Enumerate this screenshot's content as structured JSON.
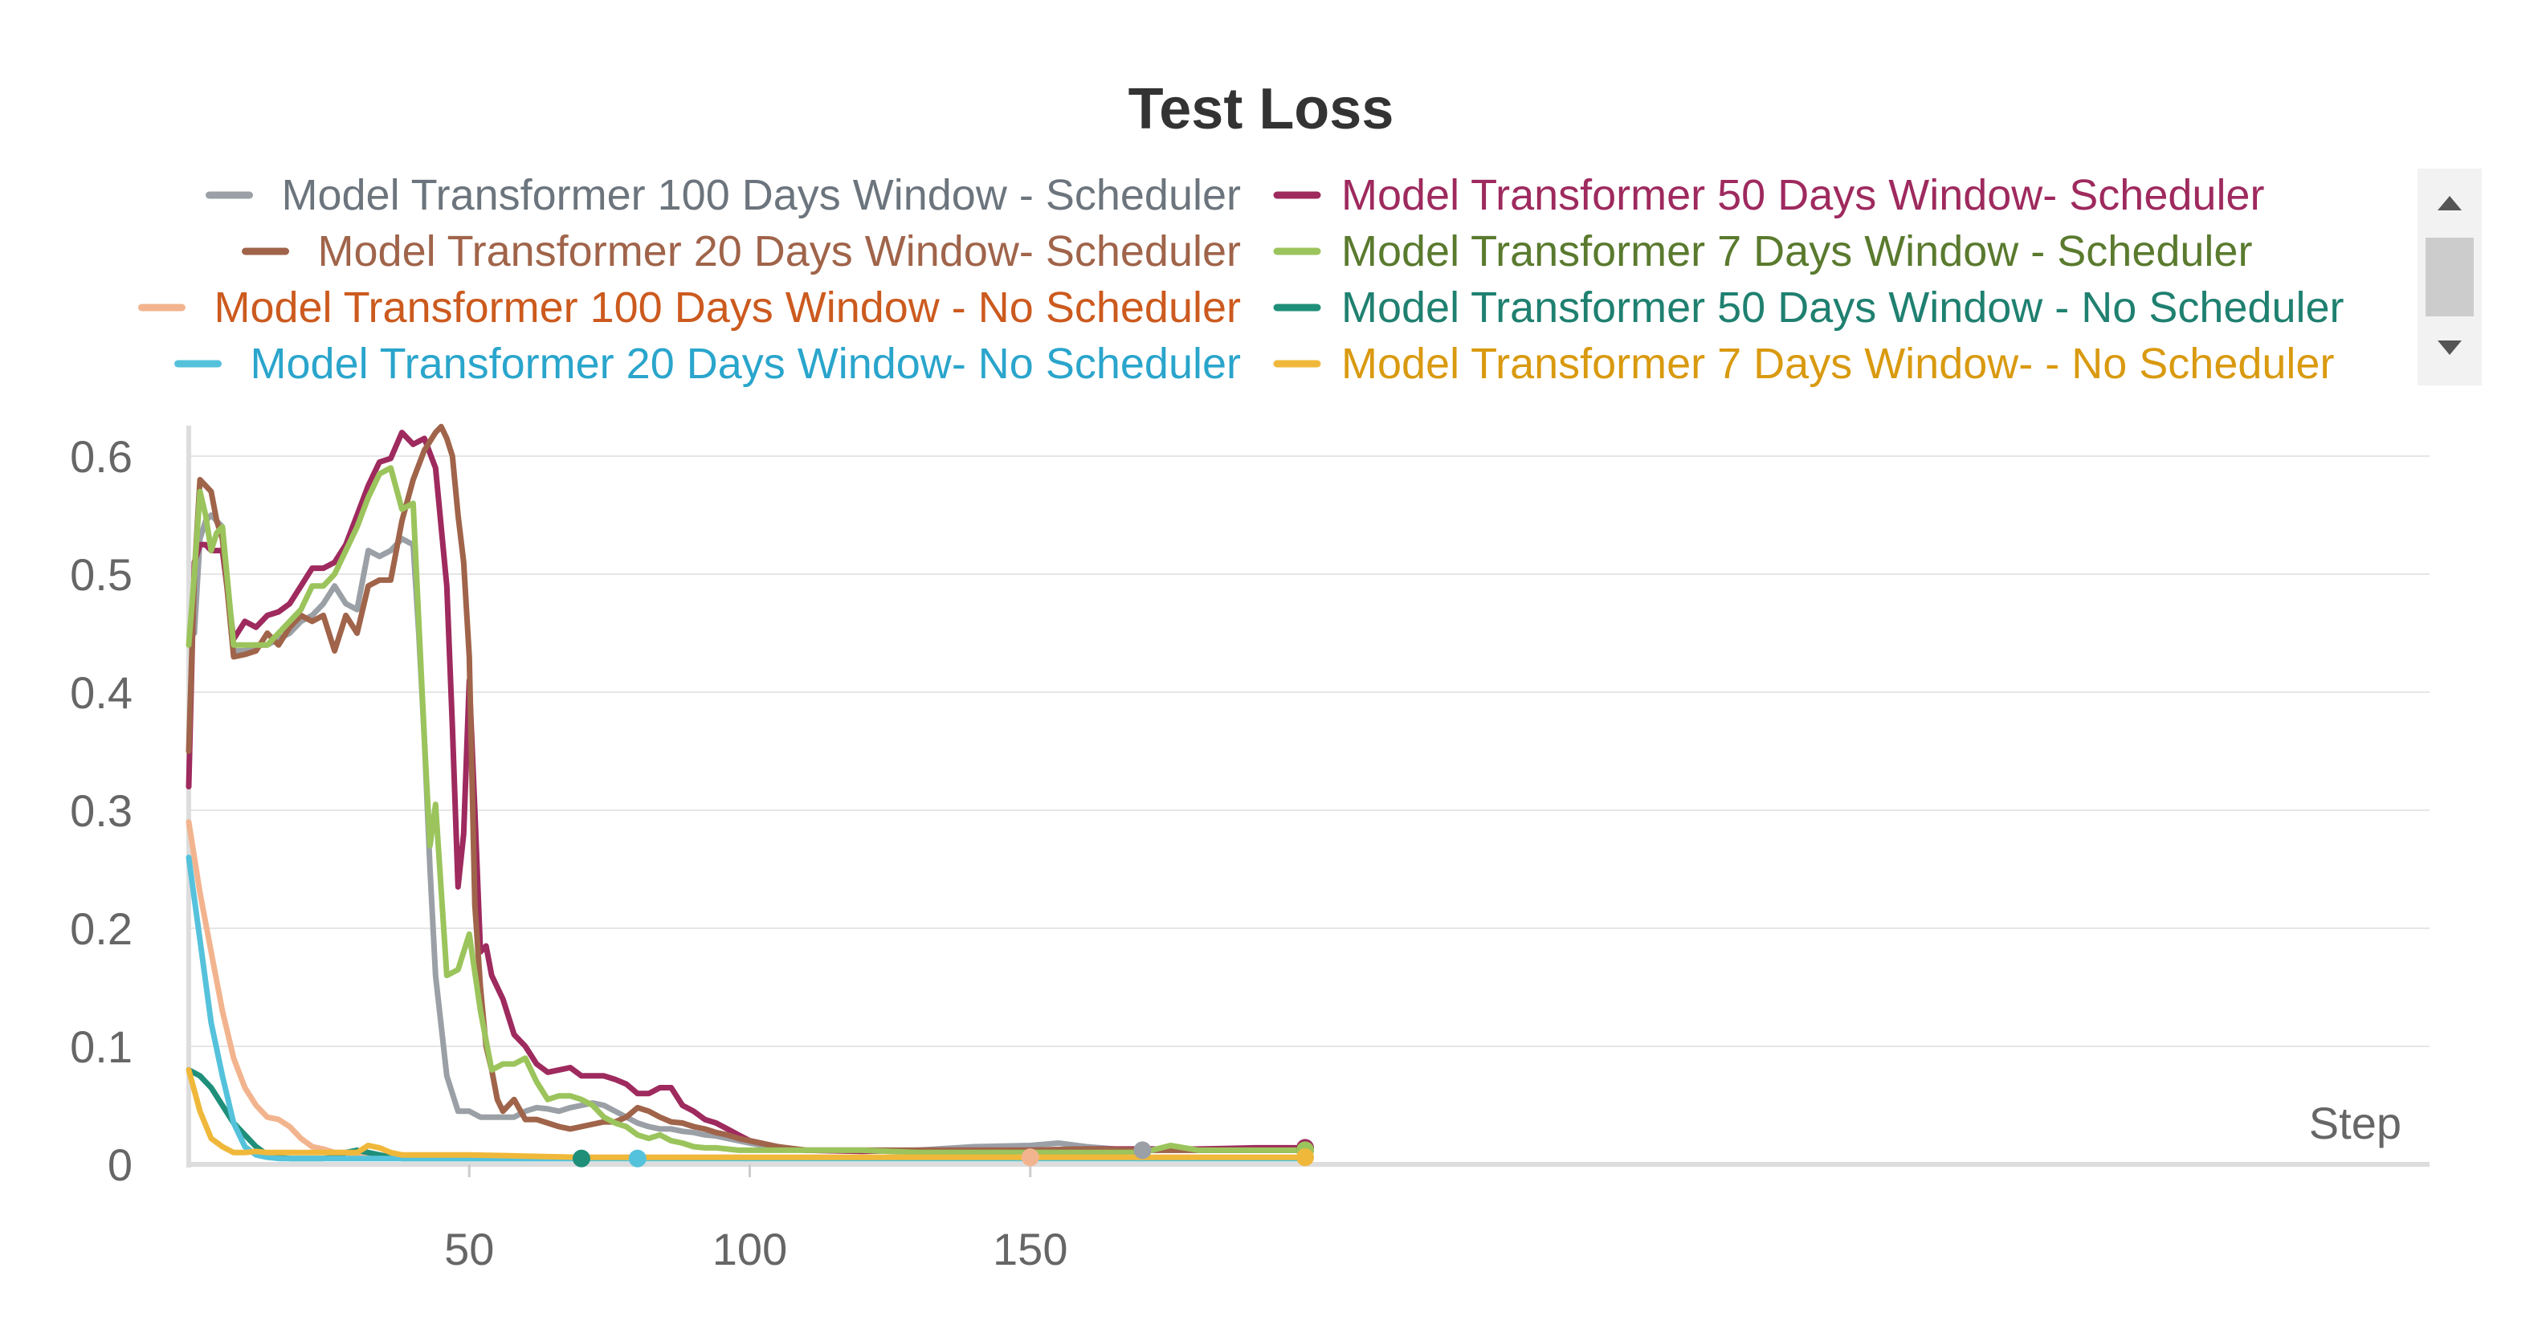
{
  "chart_data": {
    "type": "line",
    "title": "Test Loss",
    "xlabel": "Step",
    "ylabel": "",
    "xlim": [
      0,
      200
    ],
    "ylim": [
      0,
      0.62
    ],
    "grid": true,
    "legend_position": "top",
    "x_ticks": [
      50,
      100,
      150
    ],
    "y_ticks": [
      0,
      0.1,
      0.2,
      0.3,
      0.4,
      0.5,
      0.6
    ],
    "y_tick_labels": [
      "0",
      "0.1",
      "0.2",
      "0.3",
      "0.4",
      "0.5",
      "0.6"
    ],
    "series": [
      {
        "name": "Model Transformer 100 Days Window - Scheduler",
        "color": "#9aa0a6",
        "text_color": "#6c757d",
        "end_marker_x": 168,
        "x": [
          1,
          2,
          3,
          4,
          5,
          6,
          8,
          10,
          12,
          14,
          16,
          18,
          20,
          22,
          24,
          26,
          28,
          30,
          32,
          34,
          36,
          38,
          40,
          41,
          42,
          43,
          44,
          46,
          48,
          50,
          52,
          54,
          56,
          58,
          60,
          62,
          64,
          66,
          68,
          70,
          72,
          74,
          76,
          78,
          80,
          82,
          84,
          86,
          88,
          90,
          92,
          94,
          96,
          98,
          100,
          105,
          110,
          120,
          130,
          140,
          150,
          155,
          160,
          165,
          170,
          175,
          180,
          190,
          199
        ],
        "y": [
          0.45,
          0.53,
          0.545,
          0.55,
          0.545,
          0.54,
          0.435,
          0.435,
          0.44,
          0.44,
          0.445,
          0.45,
          0.46,
          0.465,
          0.475,
          0.49,
          0.475,
          0.47,
          0.52,
          0.515,
          0.52,
          0.53,
          0.525,
          0.45,
          0.36,
          0.25,
          0.16,
          0.075,
          0.045,
          0.045,
          0.04,
          0.04,
          0.04,
          0.04,
          0.045,
          0.048,
          0.047,
          0.045,
          0.048,
          0.05,
          0.052,
          0.05,
          0.045,
          0.04,
          0.035,
          0.032,
          0.03,
          0.03,
          0.028,
          0.027,
          0.025,
          0.024,
          0.022,
          0.02,
          0.018,
          0.014,
          0.012,
          0.012,
          0.012,
          0.015,
          0.016,
          0.018,
          0.015,
          0.013,
          0.012,
          0.012,
          0.012,
          0.012,
          0.012
        ]
      },
      {
        "name": "Model Transformer 50 Days Window- Scheduler",
        "color": "#9e2a5e",
        "text_color": "#9e2a5e",
        "end_marker_x": 199,
        "x": [
          0,
          1,
          2,
          3,
          4,
          5,
          6,
          8,
          10,
          12,
          14,
          16,
          18,
          20,
          22,
          24,
          26,
          28,
          30,
          32,
          34,
          36,
          38,
          40,
          42,
          44,
          46,
          47,
          48,
          49,
          50,
          51,
          52,
          53,
          54,
          56,
          58,
          60,
          62,
          64,
          66,
          68,
          70,
          72,
          74,
          76,
          78,
          80,
          82,
          84,
          86,
          88,
          90,
          92,
          94,
          96,
          98,
          100,
          102,
          104,
          106,
          110,
          120,
          130,
          140,
          150,
          160,
          170,
          180,
          190,
          199
        ],
        "y": [
          0.32,
          0.51,
          0.525,
          0.525,
          0.52,
          0.52,
          0.52,
          0.445,
          0.46,
          0.455,
          0.465,
          0.468,
          0.475,
          0.49,
          0.505,
          0.505,
          0.51,
          0.525,
          0.55,
          0.575,
          0.595,
          0.598,
          0.62,
          0.61,
          0.615,
          0.59,
          0.49,
          0.37,
          0.235,
          0.28,
          0.41,
          0.3,
          0.18,
          0.185,
          0.16,
          0.14,
          0.11,
          0.1,
          0.085,
          0.078,
          0.08,
          0.082,
          0.075,
          0.075,
          0.075,
          0.072,
          0.068,
          0.06,
          0.06,
          0.065,
          0.065,
          0.05,
          0.045,
          0.038,
          0.035,
          0.03,
          0.025,
          0.02,
          0.018,
          0.016,
          0.014,
          0.012,
          0.011,
          0.012,
          0.012,
          0.012,
          0.013,
          0.013,
          0.013,
          0.014,
          0.014
        ]
      },
      {
        "name": "Model Transformer 20 Days Window- Scheduler",
        "color": "#a0644a",
        "text_color": "#a0644a",
        "end_marker_x": 199,
        "x": [
          0,
          1,
          2,
          3,
          4,
          5,
          6,
          8,
          10,
          12,
          14,
          16,
          18,
          20,
          22,
          24,
          26,
          28,
          30,
          32,
          34,
          36,
          38,
          40,
          42,
          44,
          45,
          46,
          47,
          48,
          49,
          50,
          51,
          52,
          53,
          54,
          55,
          56,
          58,
          60,
          62,
          64,
          66,
          68,
          70,
          72,
          74,
          76,
          78,
          80,
          82,
          84,
          86,
          88,
          90,
          92,
          94,
          96,
          98,
          100,
          105,
          110,
          120,
          130,
          140,
          150,
          160,
          170,
          180,
          190,
          199
        ],
        "y": [
          0.35,
          0.5,
          0.58,
          0.575,
          0.57,
          0.545,
          0.53,
          0.43,
          0.432,
          0.435,
          0.45,
          0.44,
          0.455,
          0.465,
          0.46,
          0.465,
          0.435,
          0.465,
          0.45,
          0.49,
          0.495,
          0.495,
          0.545,
          0.58,
          0.605,
          0.62,
          0.625,
          0.615,
          0.6,
          0.55,
          0.51,
          0.43,
          0.22,
          0.15,
          0.1,
          0.08,
          0.055,
          0.045,
          0.055,
          0.038,
          0.038,
          0.035,
          0.032,
          0.03,
          0.032,
          0.034,
          0.036,
          0.036,
          0.04,
          0.048,
          0.045,
          0.04,
          0.036,
          0.035,
          0.032,
          0.03,
          0.027,
          0.025,
          0.022,
          0.02,
          0.015,
          0.012,
          0.012,
          0.012,
          0.012,
          0.012,
          0.013,
          0.012,
          0.012,
          0.012,
          0.012
        ]
      },
      {
        "name": "Model Transformer 7 Days Window - Scheduler",
        "color": "#9bc45c",
        "text_color": "#5a7a2e",
        "end_marker_x": 199,
        "x": [
          0,
          1,
          2,
          3,
          4,
          5,
          6,
          8,
          10,
          12,
          14,
          16,
          18,
          20,
          22,
          24,
          26,
          28,
          30,
          32,
          34,
          36,
          38,
          40,
          41,
          42,
          43,
          44,
          46,
          48,
          50,
          52,
          54,
          56,
          58,
          60,
          62,
          64,
          66,
          68,
          70,
          72,
          74,
          76,
          78,
          80,
          82,
          84,
          86,
          88,
          90,
          92,
          94,
          96,
          98,
          100,
          105,
          110,
          120,
          130,
          140,
          150,
          160,
          170,
          175,
          180,
          190,
          199
        ],
        "y": [
          0.44,
          0.5,
          0.57,
          0.55,
          0.52,
          0.535,
          0.54,
          0.44,
          0.44,
          0.44,
          0.44,
          0.45,
          0.46,
          0.47,
          0.49,
          0.49,
          0.5,
          0.52,
          0.54,
          0.565,
          0.585,
          0.59,
          0.555,
          0.56,
          0.46,
          0.36,
          0.27,
          0.305,
          0.16,
          0.165,
          0.195,
          0.13,
          0.08,
          0.085,
          0.085,
          0.09,
          0.07,
          0.055,
          0.058,
          0.058,
          0.055,
          0.05,
          0.04,
          0.035,
          0.032,
          0.025,
          0.022,
          0.025,
          0.02,
          0.018,
          0.015,
          0.014,
          0.014,
          0.013,
          0.012,
          0.012,
          0.012,
          0.012,
          0.012,
          0.01,
          0.01,
          0.01,
          0.01,
          0.01,
          0.016,
          0.012,
          0.012,
          0.012
        ]
      },
      {
        "name": "Model Transformer 100 Days Window - No Scheduler",
        "color": "#f2b48e",
        "text_color": "#cc5a1e",
        "end_marker_x": 152,
        "x": [
          0,
          2,
          4,
          6,
          8,
          10,
          12,
          14,
          16,
          18,
          20,
          22,
          24,
          26,
          28,
          30,
          32,
          34,
          36,
          38,
          40,
          45,
          50,
          60,
          70,
          80,
          90,
          100,
          110,
          120,
          130,
          140,
          150,
          160,
          170,
          180,
          190,
          199
        ],
        "y": [
          0.29,
          0.23,
          0.18,
          0.13,
          0.09,
          0.065,
          0.05,
          0.04,
          0.038,
          0.032,
          0.022,
          0.015,
          0.013,
          0.01,
          0.01,
          0.008,
          0.008,
          0.007,
          0.007,
          0.006,
          0.006,
          0.006,
          0.006,
          0.006,
          0.006,
          0.006,
          0.006,
          0.006,
          0.006,
          0.006,
          0.006,
          0.006,
          0.006,
          0.006,
          0.006,
          0.006,
          0.006,
          0.006
        ]
      },
      {
        "name": "Model Transformer 50 Days Window - No Scheduler",
        "color": "#1f8f7a",
        "text_color": "#1f8070",
        "end_marker_x": 72,
        "x": [
          0,
          2,
          4,
          6,
          8,
          10,
          12,
          14,
          16,
          18,
          20,
          22,
          24,
          26,
          28,
          30,
          32,
          34,
          36,
          38,
          40,
          45,
          50,
          60,
          70,
          80,
          90,
          100,
          110,
          120,
          130,
          140,
          150,
          160,
          170,
          180,
          190,
          199
        ],
        "y": [
          0.08,
          0.075,
          0.065,
          0.05,
          0.035,
          0.025,
          0.015,
          0.008,
          0.006,
          0.005,
          0.005,
          0.005,
          0.005,
          0.006,
          0.01,
          0.012,
          0.01,
          0.008,
          0.006,
          0.005,
          0.005,
          0.005,
          0.005,
          0.005,
          0.005,
          0.005,
          0.005,
          0.005,
          0.005,
          0.005,
          0.005,
          0.005,
          0.005,
          0.005,
          0.005,
          0.005,
          0.005,
          0.005
        ]
      },
      {
        "name": "Model Transformer 20 Days Window- No Scheduler",
        "color": "#55c2dc",
        "text_color": "#2aa5cc",
        "end_marker_x": 76,
        "x": [
          0,
          2,
          4,
          6,
          8,
          10,
          12,
          14,
          16,
          18,
          20,
          22,
          24,
          26,
          28,
          30,
          35,
          40,
          45,
          50,
          60,
          70,
          80,
          90,
          100,
          110,
          120,
          130,
          140,
          150,
          160,
          170,
          180,
          190,
          199
        ],
        "y": [
          0.26,
          0.19,
          0.12,
          0.075,
          0.035,
          0.015,
          0.008,
          0.006,
          0.005,
          0.005,
          0.005,
          0.005,
          0.005,
          0.005,
          0.005,
          0.005,
          0.005,
          0.005,
          0.005,
          0.005,
          0.005,
          0.005,
          0.005,
          0.005,
          0.005,
          0.005,
          0.005,
          0.005,
          0.005,
          0.005,
          0.005,
          0.005,
          0.005,
          0.005,
          0.005
        ]
      },
      {
        "name": "Model Transformer 7 Days Window- - No Scheduler",
        "color": "#f0b83a",
        "text_color": "#d99a10",
        "end_marker_x": 199,
        "x": [
          0,
          2,
          4,
          6,
          8,
          10,
          12,
          14,
          16,
          18,
          20,
          22,
          24,
          26,
          28,
          30,
          32,
          34,
          36,
          38,
          40,
          45,
          50,
          60,
          70,
          80,
          90,
          100,
          110,
          120,
          130,
          140,
          150,
          160,
          170,
          180,
          190,
          199
        ],
        "y": [
          0.08,
          0.045,
          0.022,
          0.015,
          0.01,
          0.01,
          0.011,
          0.01,
          0.01,
          0.01,
          0.01,
          0.01,
          0.01,
          0.01,
          0.01,
          0.01,
          0.016,
          0.014,
          0.01,
          0.008,
          0.008,
          0.008,
          0.008,
          0.007,
          0.006,
          0.006,
          0.006,
          0.006,
          0.006,
          0.006,
          0.006,
          0.006,
          0.006,
          0.006,
          0.006,
          0.006,
          0.006,
          0.006
        ]
      }
    ]
  }
}
